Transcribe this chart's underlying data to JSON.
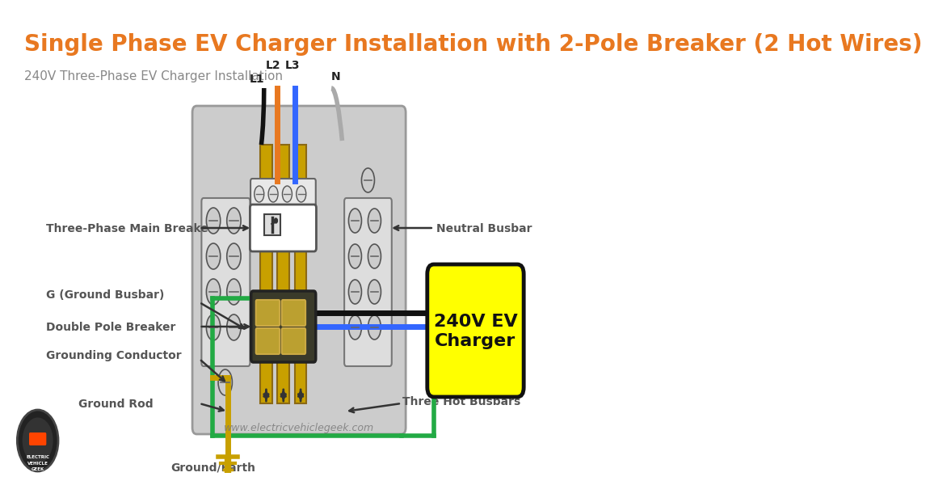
{
  "title": "Single Phase EV Charger Installation with 2-Pole Breaker (2 Hot Wires)",
  "subtitle": "240V Three-Phase EV Charger Installation",
  "title_color": "#E87820",
  "subtitle_color": "#888888",
  "bg_color": "#FFFFFF",
  "panel_color": "#CCCCCC",
  "busbar_color": "#C8A000",
  "busbar_edge": "#8B6914",
  "charger_box_color": "#FFFF00",
  "charger_text": "240V EV\nCharger",
  "watermark": "www.electricvehiclegeek.com",
  "wire_L1": "#111111",
  "wire_L2": "#E87820",
  "wire_L3": "#3366FF",
  "wire_N": "#AAAAAA",
  "wire_green": "#22AA44",
  "wire_gold": "#C8A000",
  "wire_black": "#111111",
  "wire_blue": "#3366FF",
  "labels": {
    "three_phase_breaker": "Three-Phase Main Breaker",
    "neutral_busbar": "Neutral Busbar",
    "ground_busbar": "G (Ground Busbar)",
    "double_pole": "Double Pole Breaker",
    "grounding_conductor": "Grounding Conductor",
    "ground_rod": "Ground Rod",
    "ground_earth": "Ground/Earth",
    "three_hot_busbars": "Three Hot Busbars"
  }
}
